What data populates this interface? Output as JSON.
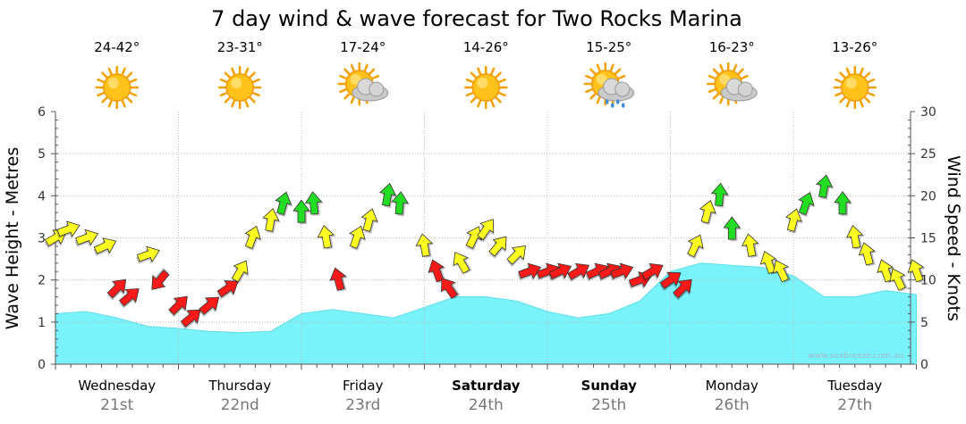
{
  "chart_data": {
    "type": "area",
    "title": "7 day wind & wave forecast for Two Rocks Marina",
    "ylabel_left": "Wave Height - Metres",
    "ylabel_right": "Wind Speed - Knots",
    "ylim_left": [
      0,
      6
    ],
    "ylim_right": [
      0,
      30
    ],
    "left_ticks": [
      "0",
      "1",
      "2",
      "3",
      "4",
      "5",
      "6"
    ],
    "right_ticks": [
      "0",
      "5",
      "10",
      "15",
      "20",
      "25",
      "30"
    ],
    "grid": true,
    "credit": "www.seabreeze.com.au",
    "days": [
      {
        "day": "Wednesday",
        "date": "21st",
        "temps": "24-42°",
        "weather": "sunny",
        "bold": false
      },
      {
        "day": "Thursday",
        "date": "22nd",
        "temps": "23-31°",
        "weather": "sunny",
        "bold": false
      },
      {
        "day": "Friday",
        "date": "23rd",
        "temps": "17-24°",
        "weather": "partly-cloudy",
        "bold": false
      },
      {
        "day": "Saturday",
        "date": "24th",
        "temps": "14-26°",
        "weather": "sunny",
        "bold": true
      },
      {
        "day": "Sunday",
        "date": "25th",
        "temps": "15-25°",
        "weather": "showers",
        "bold": true
      },
      {
        "day": "Monday",
        "date": "26th",
        "temps": "16-23°",
        "weather": "partly-cloudy",
        "bold": false
      },
      {
        "day": "Tuesday",
        "date": "27th",
        "temps": "13-26°",
        "weather": "sunny",
        "bold": false
      }
    ],
    "wave_height": {
      "name": "Wave Height",
      "unit": "m",
      "x_days": [
        0,
        0.25,
        0.5,
        0.75,
        1,
        1.25,
        1.5,
        1.75,
        2,
        2.25,
        2.5,
        2.75,
        3,
        3.25,
        3.5,
        3.75,
        4,
        4.25,
        4.5,
        4.75,
        5,
        5.25,
        5.5,
        5.75,
        6,
        6.25,
        6.5,
        6.75,
        7
      ],
      "values": [
        1.2,
        1.25,
        1.1,
        0.9,
        0.85,
        0.78,
        0.75,
        0.78,
        1.2,
        1.3,
        1.2,
        1.1,
        1.35,
        1.6,
        1.6,
        1.5,
        1.25,
        1.1,
        1.2,
        1.5,
        2.2,
        2.4,
        2.35,
        2.3,
        2.1,
        1.6,
        1.6,
        1.75,
        1.65
      ]
    },
    "wind_speed": {
      "name": "Wind Speed",
      "unit": "knots",
      "legend_colors": {
        "light": "#ff0000",
        "moderate": "#ffff00",
        "strong": "#00dd00"
      },
      "x_days": [
        0,
        0.1,
        0.25,
        0.4,
        0.5,
        0.6,
        0.75,
        0.85,
        1,
        1.1,
        1.25,
        1.4,
        1.5,
        1.6,
        1.75,
        1.85,
        2,
        2.1,
        2.2,
        2.3,
        2.45,
        2.55,
        2.7,
        2.8,
        3,
        3.1,
        3.2,
        3.3,
        3.4,
        3.5,
        3.6,
        3.75,
        3.85,
        4,
        4.1,
        4.25,
        4.4,
        4.5,
        4.6,
        4.75,
        4.85,
        5,
        5.1,
        5.2,
        5.3,
        5.4,
        5.5,
        5.65,
        5.8,
        5.9,
        6,
        6.1,
        6.25,
        6.4,
        6.5,
        6.6,
        6.75,
        6.85,
        7
      ],
      "values": [
        15,
        16,
        15,
        14,
        9,
        8,
        13,
        10,
        7,
        5.5,
        7,
        9,
        11,
        15,
        17,
        19,
        18,
        19,
        15,
        10,
        15,
        17,
        20,
        19,
        14,
        11,
        9,
        12,
        15,
        16,
        14,
        13,
        11,
        11,
        11,
        11,
        11,
        11,
        11,
        10,
        11,
        10,
        9,
        14,
        18,
        20,
        16,
        14,
        12,
        11,
        17,
        19,
        21,
        19,
        15,
        13,
        11,
        10,
        11
      ],
      "directions_deg": [
        240,
        250,
        250,
        245,
        225,
        230,
        250,
        40,
        225,
        230,
        230,
        235,
        210,
        200,
        190,
        195,
        180,
        175,
        170,
        165,
        200,
        195,
        190,
        185,
        170,
        160,
        145,
        150,
        205,
        215,
        220,
        225,
        250,
        250,
        245,
        240,
        245,
        245,
        250,
        250,
        240,
        235,
        225,
        205,
        195,
        185,
        180,
        170,
        160,
        155,
        195,
        200,
        190,
        180,
        170,
        165,
        160,
        155,
        160
      ],
      "colors": [
        "yellow",
        "yellow",
        "yellow",
        "yellow",
        "red",
        "red",
        "yellow",
        "red",
        "red",
        "red",
        "red",
        "red",
        "yellow",
        "yellow",
        "yellow",
        "green",
        "green",
        "green",
        "yellow",
        "red",
        "yellow",
        "yellow",
        "green",
        "green",
        "yellow",
        "red",
        "red",
        "yellow",
        "yellow",
        "yellow",
        "yellow",
        "yellow",
        "red",
        "red",
        "red",
        "red",
        "red",
        "red",
        "red",
        "red",
        "red",
        "red",
        "red",
        "yellow",
        "yellow",
        "green",
        "green",
        "yellow",
        "yellow",
        "yellow",
        "yellow",
        "green",
        "green",
        "green",
        "yellow",
        "yellow",
        "yellow",
        "yellow",
        "yellow"
      ]
    }
  }
}
